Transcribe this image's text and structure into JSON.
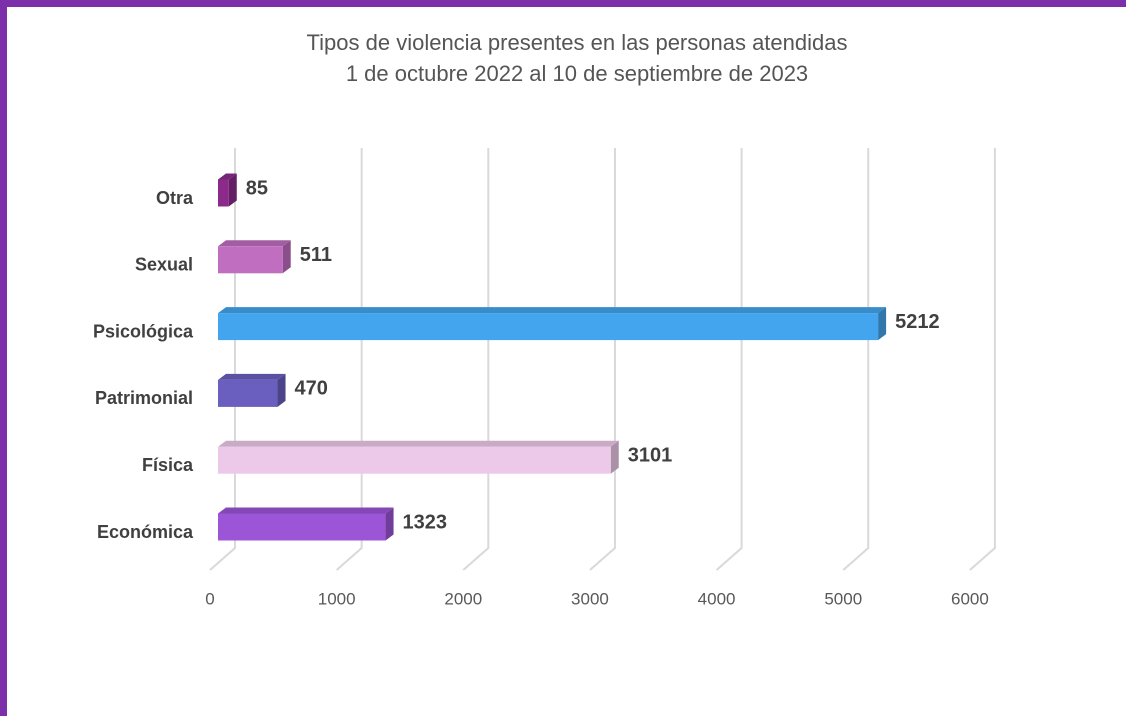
{
  "chart_data": {
    "type": "bar3d_horizontal",
    "title": "Tipos de violencia presentes en las personas atendidas",
    "subtitle": "1 de octubre 2022 al 10 de septiembre de 2023",
    "categories": [
      "Económica",
      "Física",
      "Patrimonial",
      "Psicológica",
      "Sexual",
      "Otra"
    ],
    "values": [
      1323,
      3101,
      470,
      5212,
      511,
      85
    ],
    "colors": [
      "#9b55d6",
      "#ecc9e8",
      "#6a5fbf",
      "#42a5ee",
      "#c06ec0",
      "#8b2a8b"
    ],
    "xlim": [
      0,
      6000
    ],
    "xticks": [
      0,
      1000,
      2000,
      3000,
      4000,
      5000,
      6000
    ],
    "grid": true
  }
}
